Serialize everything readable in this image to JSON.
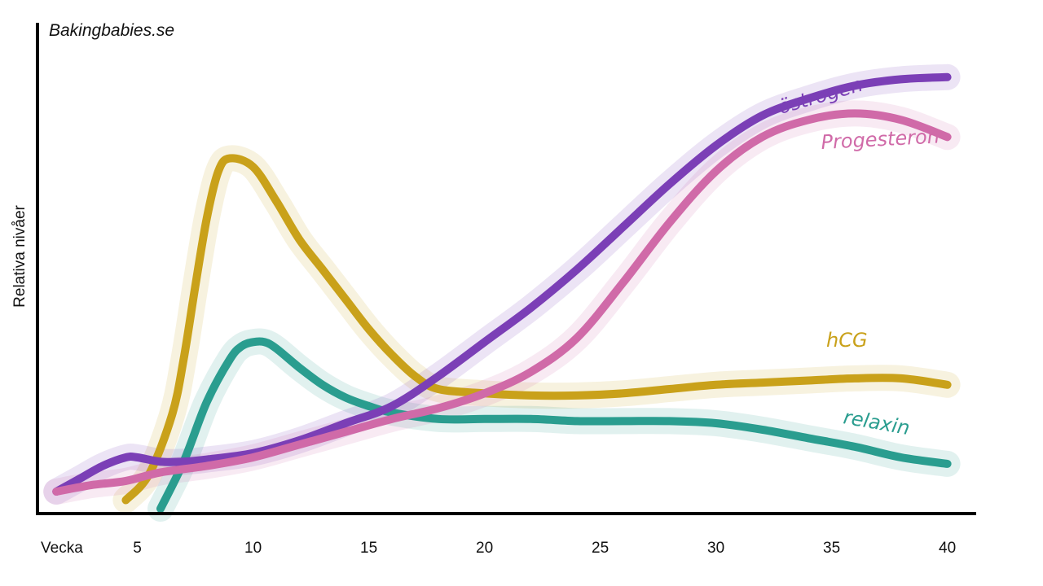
{
  "brand": "Bakingbabies.se",
  "chart_data": {
    "type": "line",
    "title": "",
    "xlabel": "Vecka",
    "ylabel": "Relativa nivåer",
    "xlim": [
      1,
      40
    ],
    "ylim": [
      0,
      100
    ],
    "xticks": [
      5,
      10,
      15,
      20,
      25,
      30,
      35,
      40
    ],
    "grid": false,
    "series": [
      {
        "name": "hCG",
        "color": "#c9a11a",
        "x": [
          4.5,
          5.5,
          6.5,
          7.0,
          7.5,
          8.0,
          8.5,
          9.0,
          10.0,
          11.0,
          12.0,
          13.0,
          14.0,
          15.0,
          16.0,
          17.0,
          18.0,
          20.0,
          22.0,
          24.0,
          26.0,
          28.0,
          30.0,
          32.0,
          34.0,
          36.0,
          38.0,
          40.0
        ],
        "y": [
          2,
          8,
          22,
          35,
          52,
          68,
          79,
          82,
          80,
          72,
          63,
          56,
          49,
          42,
          36,
          31,
          28,
          27,
          26.5,
          26.5,
          27,
          28,
          29,
          29.5,
          30,
          30.5,
          30.5,
          29
        ]
      },
      {
        "name": "relaxin",
        "color": "#2a9d8f",
        "x": [
          6.0,
          7.0,
          8.0,
          9.0,
          9.5,
          10.0,
          10.5,
          11.0,
          12.0,
          13.0,
          14.0,
          15.0,
          16.0,
          18.0,
          20.0,
          22.0,
          24.0,
          26.0,
          28.0,
          30.0,
          32.0,
          34.0,
          36.0,
          38.0,
          40.0
        ],
        "y": [
          0,
          11,
          25,
          35,
          38,
          39,
          39,
          37.5,
          33,
          29,
          26,
          24,
          22.5,
          21,
          21,
          21,
          20.5,
          20.5,
          20.5,
          20,
          18.5,
          16.5,
          14.5,
          12,
          10.5
        ]
      },
      {
        "name": "östrogen",
        "color": "#7b3fb6",
        "x": [
          1.5,
          2.5,
          3.5,
          4.5,
          5.0,
          6.0,
          7.0,
          8.0,
          10.0,
          12.0,
          14.0,
          16.0,
          18.0,
          20.0,
          22.0,
          24.0,
          26.0,
          28.0,
          30.0,
          32.0,
          34.0,
          36.0,
          38.0,
          40.0
        ],
        "y": [
          4,
          7,
          10,
          12,
          12,
          11,
          11,
          11.5,
          13,
          16,
          20,
          24,
          31,
          39,
          47,
          56,
          66,
          76,
          85,
          92,
          96,
          99,
          100.5,
          101
        ]
      },
      {
        "name": "Progesteron",
        "color": "#d06aa8",
        "x": [
          1.5,
          3.0,
          4.5,
          6.0,
          8.0,
          10.0,
          12.0,
          14.0,
          16.0,
          18.0,
          20.0,
          22.0,
          24.0,
          26.0,
          28.0,
          30.0,
          32.0,
          34.0,
          36.0,
          38.0,
          40.0
        ],
        "y": [
          4,
          5.5,
          6.5,
          8.5,
          10,
          12,
          15,
          18,
          21,
          23.5,
          27,
          32,
          40,
          53,
          67,
          79,
          87,
          91,
          92.5,
          91,
          87
        ]
      }
    ],
    "annotations": [
      {
        "text": "östrogen",
        "series": "östrogen"
      },
      {
        "text": "Progesteron",
        "series": "Progesteron"
      },
      {
        "text": "hCG",
        "series": "hCG"
      },
      {
        "text": "relaxin",
        "series": "relaxin"
      }
    ]
  }
}
